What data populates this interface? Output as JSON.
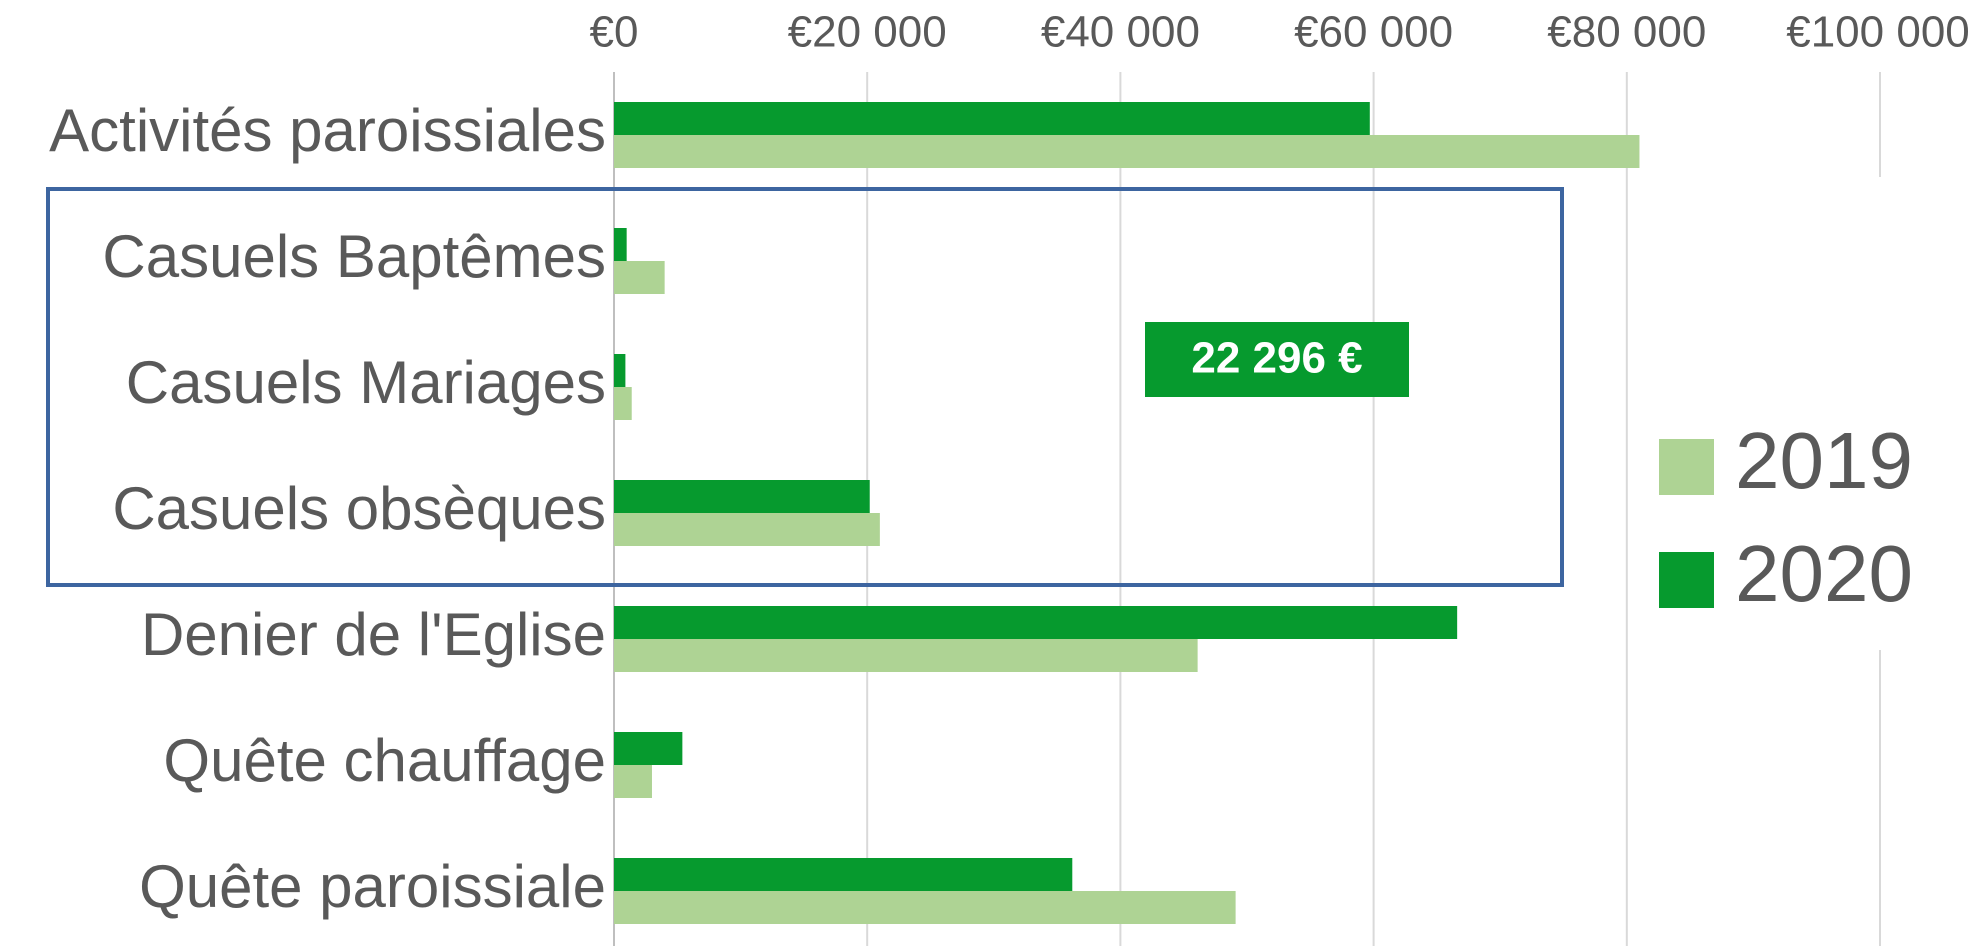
{
  "chart_data": {
    "type": "bar",
    "orientation": "horizontal",
    "categories": [
      "Activités paroissiales",
      "Casuels Baptêmes",
      "Casuels Mariages",
      "Casuels obsèques",
      "Denier de l'Eglise",
      "Quête chauffage",
      "Quête paroissiale"
    ],
    "series": [
      {
        "name": "2019",
        "color": "#aed394",
        "values": [
          81000,
          4000,
          1400,
          21000,
          46100,
          3000,
          49100
        ]
      },
      {
        "name": "2020",
        "color": "#069a2e",
        "values": [
          59700,
          1000,
          900,
          20200,
          66600,
          5400,
          36200
        ]
      }
    ],
    "xlim": [
      0,
      100000
    ],
    "xticks": [
      {
        "value": 0,
        "label": "€0"
      },
      {
        "value": 20000,
        "label": "€20 000"
      },
      {
        "value": 40000,
        "label": "€40 000"
      },
      {
        "value": 60000,
        "label": "€60 000"
      },
      {
        "value": 80000,
        "label": "€80 000"
      },
      {
        "value": 100000,
        "label": "€100 000"
      }
    ],
    "grid": true,
    "legend": "right",
    "annotation": "22 296 €"
  }
}
